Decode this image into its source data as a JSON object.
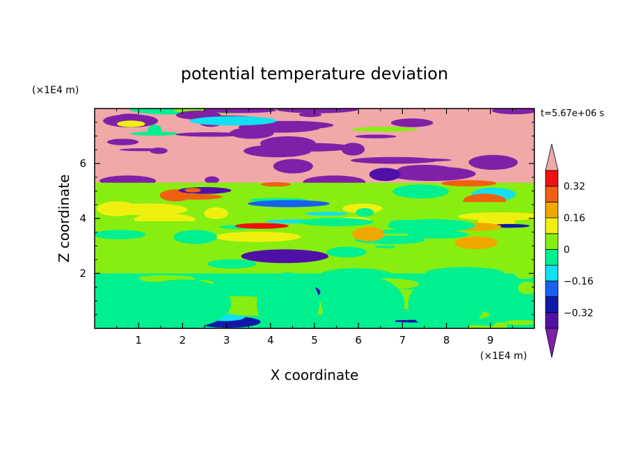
{
  "chart_data": {
    "type": "heatmap",
    "title": "potential temperature deviation",
    "xlabel": "X coordinate",
    "ylabel": "Z coordinate",
    "x_unit_label": "(×1E4 m)",
    "y_unit_label": "(×1E4 m)",
    "time_label": "t=5.67e+06 s",
    "xlim": [
      0,
      10
    ],
    "ylim": [
      0,
      8
    ],
    "x_ticks": [
      1,
      2,
      3,
      4,
      5,
      6,
      7,
      8,
      9
    ],
    "y_ticks": [
      2,
      4,
      6
    ],
    "x_tick_labels": [
      "1",
      "2",
      "3",
      "4",
      "5",
      "6",
      "7",
      "8",
      "9"
    ],
    "y_tick_labels": [
      "2",
      "4",
      "6"
    ],
    "levels": [
      -0.4,
      -0.32,
      -0.24,
      -0.16,
      -0.08,
      0,
      0.08,
      0.16,
      0.24,
      0.32,
      0.4
    ],
    "colorbar_labels": [
      "0.32",
      "0.16",
      "0",
      "−0.16",
      "−0.32"
    ],
    "colorbar_label_values": [
      0.32,
      0.16,
      0,
      -0.16,
      -0.32
    ],
    "colors": {
      "below_min": "#8020a8",
      "bins": [
        "#5010a8",
        "#1018a8",
        "#1860f0",
        "#10e0f0",
        "#00f090",
        "#88ee10",
        "#f0f010",
        "#f0a800",
        "#f06010",
        "#f01010"
      ],
      "above_max": "#f0a8a8"
    },
    "bands": [
      {
        "z": [
          7.6,
          8.0
        ],
        "background": "#f0a8a8",
        "blob_color": "#8020a8"
      },
      {
        "z": [
          5.3,
          7.6
        ],
        "background": "#f0a8a8",
        "blob_color": "#8020a8"
      },
      {
        "z": [
          4.6,
          5.3
        ],
        "background": "#88ee10",
        "blob_color": "#f06010"
      },
      {
        "z": [
          3.9,
          4.6
        ],
        "background": "#88ee10",
        "blob_color": "#f0f010"
      },
      {
        "z": [
          2.0,
          3.9
        ],
        "background": "#88ee10",
        "blob_color": "#00f090"
      },
      {
        "z": [
          0.0,
          2.0
        ],
        "background": "#00f090",
        "blob_color": "#88ee10"
      }
    ]
  }
}
